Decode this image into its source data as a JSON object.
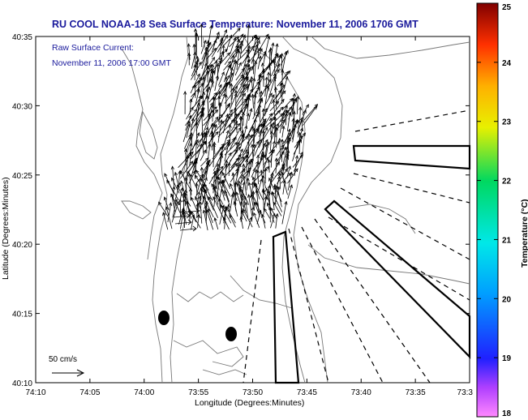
{
  "header": {
    "title": "RU COOL  NOAA-18  Sea Surface Temperature:  November 11, 2006 1706 GMT"
  },
  "overlay": {
    "subtitle_line1": "Raw Surface Current:",
    "subtitle_line2": "November 11, 2006 17:00 GMT",
    "scale_label": "50 cm/s"
  },
  "axes": {
    "xlabel": "Longitude (Degrees:Minutes)",
    "ylabel": "Latitude (Degrees:Minutes)",
    "x_ticks": [
      "74:10",
      "74:05",
      "74:00",
      "73:55",
      "73:50",
      "73:45",
      "73:40",
      "73:35",
      "73:3"
    ],
    "y_ticks": [
      "40:35",
      "40:30",
      "40:25",
      "40:20",
      "40:15",
      "40:10"
    ]
  },
  "colorbar": {
    "label": "Temperature (°C)",
    "ticks": [
      "25",
      "24",
      "23",
      "22",
      "21",
      "20",
      "19",
      "18"
    ],
    "min": 18,
    "max": 25
  },
  "colors": {
    "title": "#1a1a9c",
    "land": "#ffffff",
    "contour": "#777777"
  }
}
